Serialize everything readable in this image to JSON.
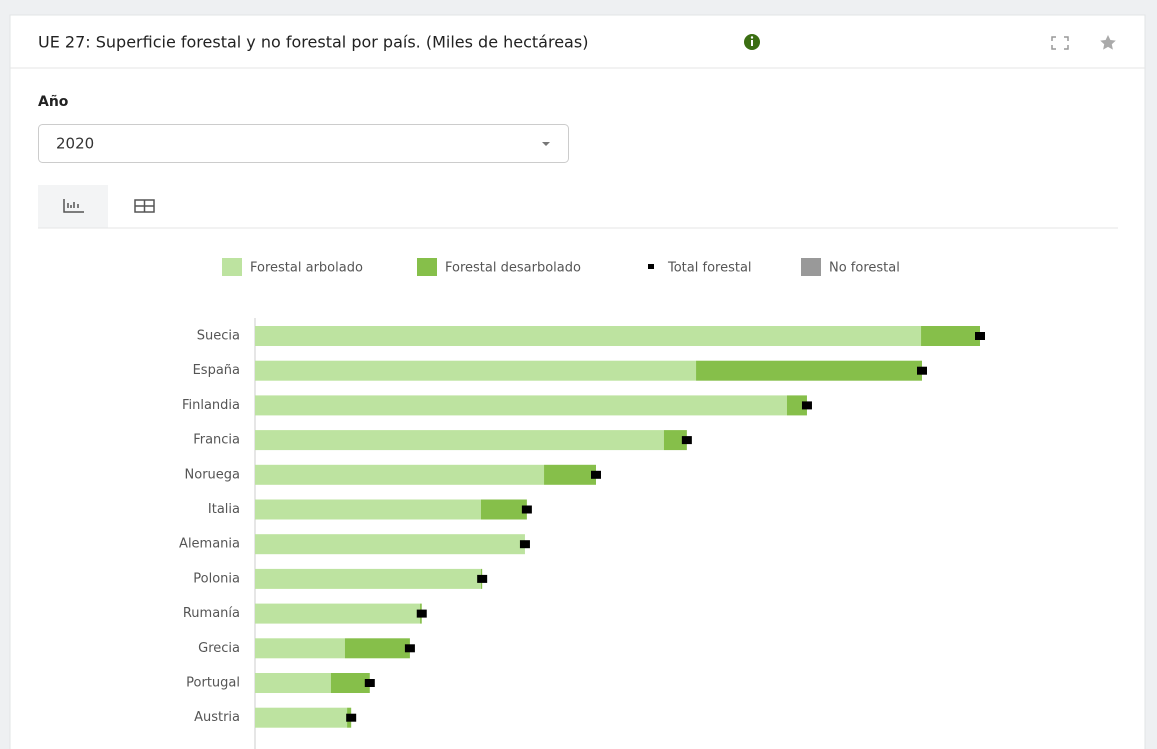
{
  "header": {
    "title": "UE 27: Superficie forestal y no forestal por país. (Miles de hectáreas)"
  },
  "filter": {
    "label": "Año",
    "value": "2020"
  },
  "chart_data": {
    "type": "bar",
    "orientation": "horizontal",
    "stacked": true,
    "categories": [
      "Suecia",
      "España",
      "Finlandia",
      "Francia",
      "Noruega",
      "Italia",
      "Alemania",
      "Polonia",
      "Rumanía",
      "Grecia",
      "Portugal",
      "Austria"
    ],
    "series": [
      {
        "name": "Forestal arbolado",
        "color": "#bde3a0",
        "values": [
          27560,
          18250,
          22010,
          16920,
          11960,
          9350,
          11170,
          9350,
          6830,
          3720,
          3140,
          3810
        ]
      },
      {
        "name": "Forestal desarbolado",
        "color": "#86bf4a",
        "values": [
          2440,
          9350,
          830,
          950,
          2150,
          1900,
          0,
          50,
          70,
          2690,
          1610,
          170
        ]
      },
      {
        "name": "Total forestal",
        "color": "#000000",
        "marker": true,
        "values": [
          30000,
          27600,
          22840,
          17870,
          14110,
          11250,
          11170,
          9400,
          6900,
          6410,
          4750,
          3980
        ]
      },
      {
        "name": "No forestal",
        "color": "#999999",
        "values": [
          null,
          null,
          null,
          null,
          null,
          null,
          null,
          null,
          null,
          null,
          null,
          null
        ]
      }
    ]
  }
}
